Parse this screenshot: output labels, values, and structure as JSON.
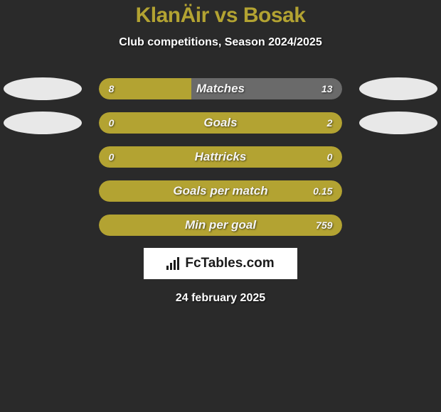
{
  "header": {
    "title": "KlanÄir vs Bosak",
    "title_color": "#b3a332",
    "subtitle": "Club competitions, Season 2024/2025"
  },
  "colors": {
    "team_left": "#b3a332",
    "team_right": "#6a6a6a",
    "background": "#2a2a2a",
    "oval": "#e8e8e8"
  },
  "bars": [
    {
      "label": "Matches",
      "left_value": "8",
      "right_value": "13",
      "left_num": 8,
      "right_num": 13,
      "has_ovals": true
    },
    {
      "label": "Goals",
      "left_value": "0",
      "right_value": "2",
      "left_num": 0,
      "right_num": 2,
      "has_ovals": true
    },
    {
      "label": "Hattricks",
      "left_value": "0",
      "right_value": "0",
      "left_num": 0,
      "right_num": 0,
      "has_ovals": false
    },
    {
      "label": "Goals per match",
      "left_value": "",
      "right_value": "0.15",
      "left_num": 0,
      "right_num": 0.15,
      "has_ovals": false
    },
    {
      "label": "Min per goal",
      "left_value": "",
      "right_value": "759",
      "left_num": 0,
      "right_num": 759,
      "has_ovals": false
    }
  ],
  "footer": {
    "logo_text": "FcTables.com",
    "date": "24 february 2025"
  }
}
